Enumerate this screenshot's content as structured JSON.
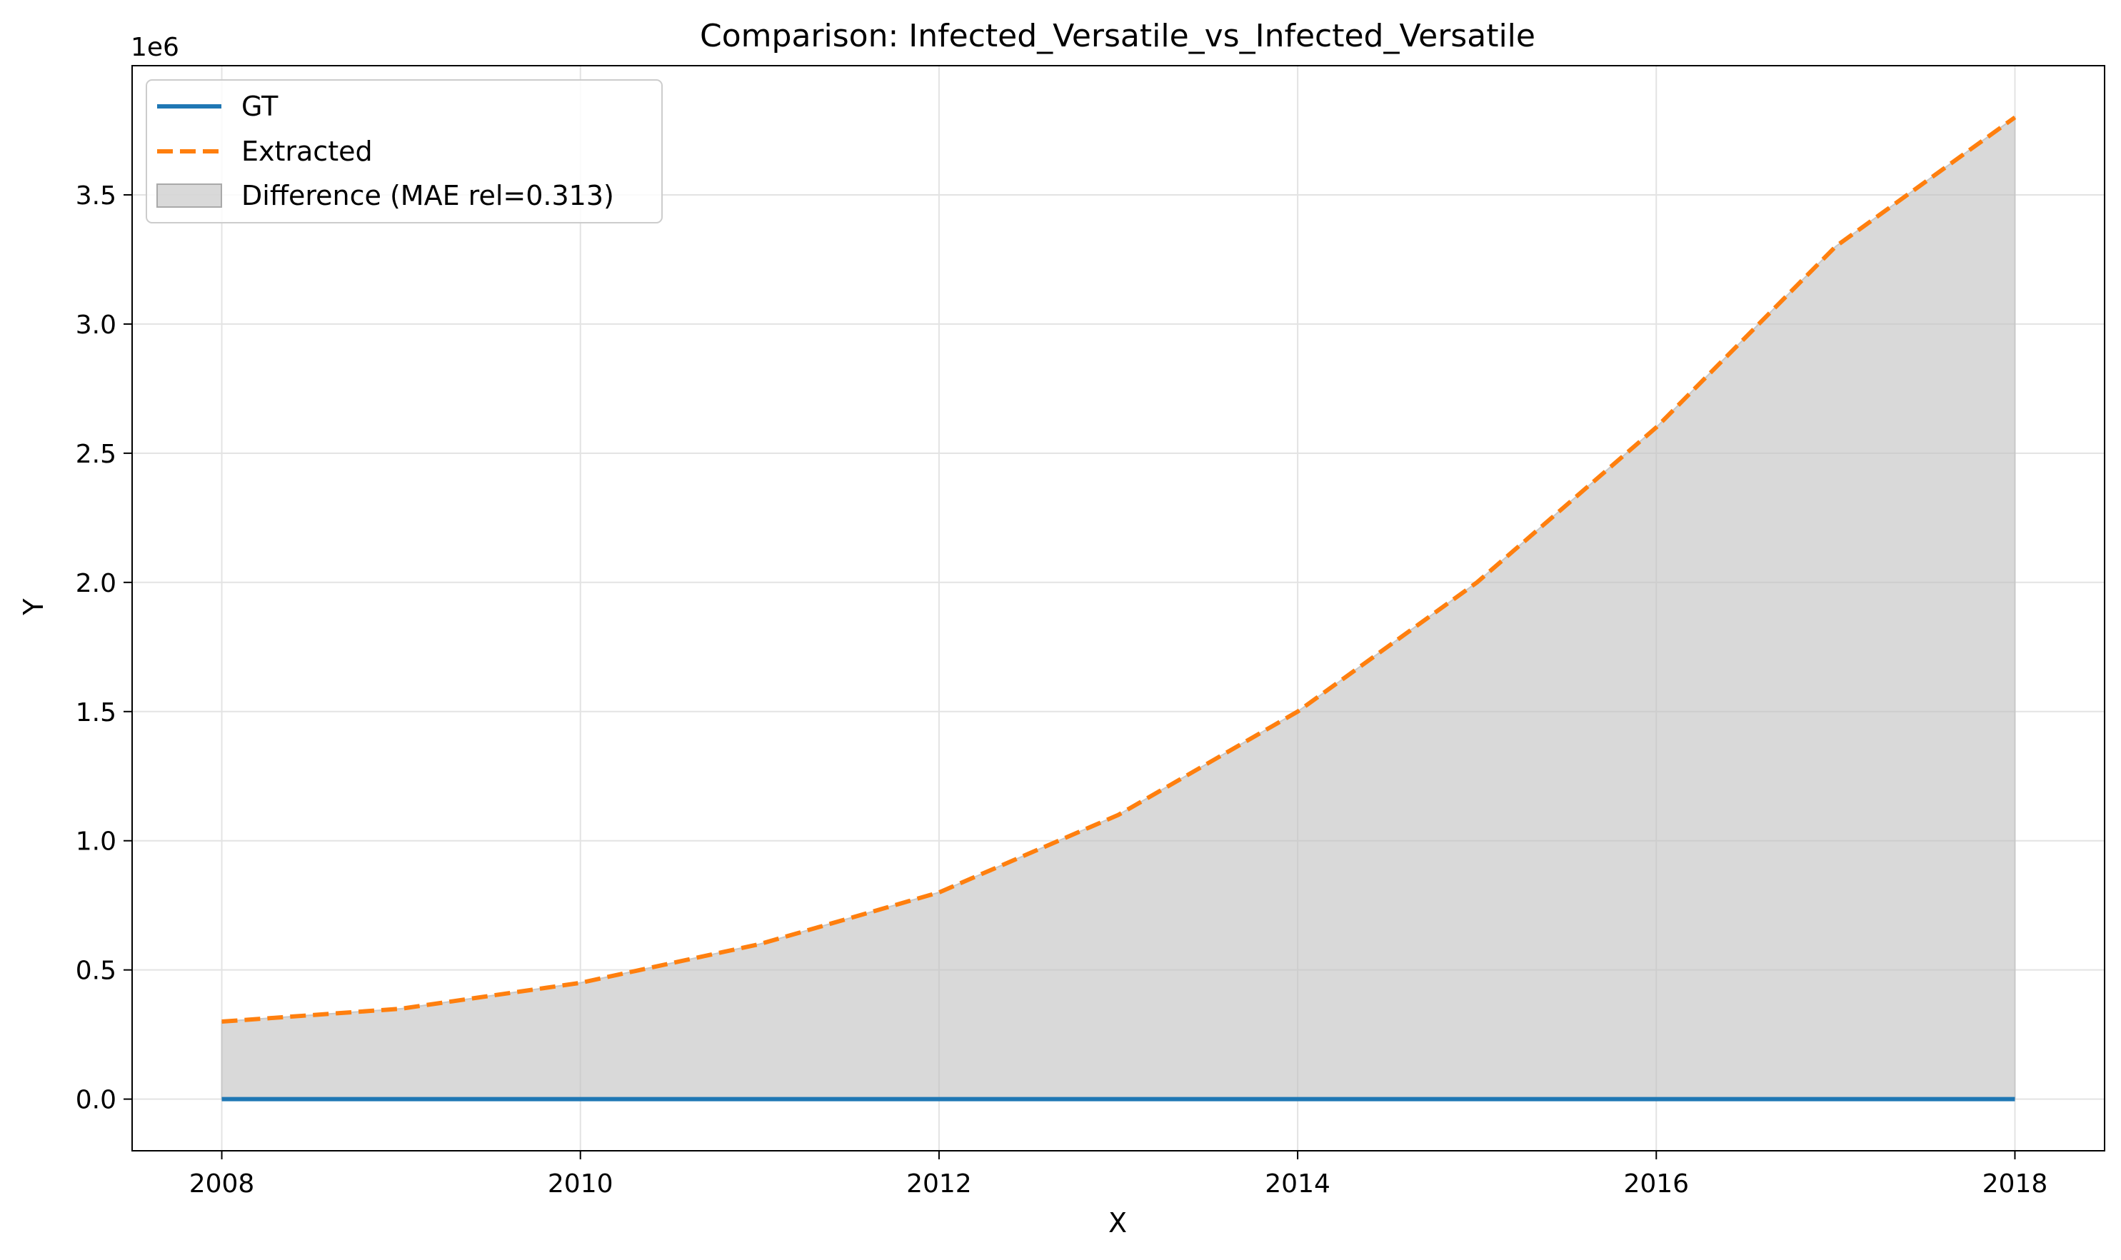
{
  "chart_data": {
    "type": "line",
    "title": "Comparison: Infected_Versatile_vs_Infected_Versatile",
    "xlabel": "X",
    "ylabel": "Y",
    "y_offset_label": "1e6",
    "xlim": [
      2007.5,
      2018.5
    ],
    "ylim": [
      -200000,
      4000000
    ],
    "x_ticks": [
      2008,
      2010,
      2012,
      2014,
      2016,
      2018
    ],
    "x_tick_labels": [
      "2008",
      "2010",
      "2012",
      "2014",
      "2016",
      "2018"
    ],
    "y_ticks": [
      0,
      500000,
      1000000,
      1500000,
      2000000,
      2500000,
      3000000,
      3500000
    ],
    "y_tick_labels": [
      "0.0",
      "0.5",
      "1.0",
      "1.5",
      "2.0",
      "2.5",
      "3.0",
      "3.5"
    ],
    "grid": true,
    "legend_position": "top-left",
    "x": [
      2008,
      2009,
      2010,
      2011,
      2012,
      2013,
      2014,
      2015,
      2016,
      2017,
      2018
    ],
    "series": [
      {
        "name": "GT",
        "color": "#1f77b4",
        "style": "solid",
        "values": [
          0,
          0,
          0,
          0,
          0,
          0,
          0,
          0,
          0,
          0,
          0
        ]
      },
      {
        "name": "Extracted",
        "color": "#ff7f0e",
        "style": "dashed",
        "values": [
          300000,
          350000,
          450000,
          600000,
          800000,
          1100000,
          1500000,
          2000000,
          2600000,
          3300000,
          3800000
        ]
      }
    ],
    "fill": {
      "name": "Difference (MAE rel=0.313)",
      "color": "#c0c0c0"
    }
  }
}
